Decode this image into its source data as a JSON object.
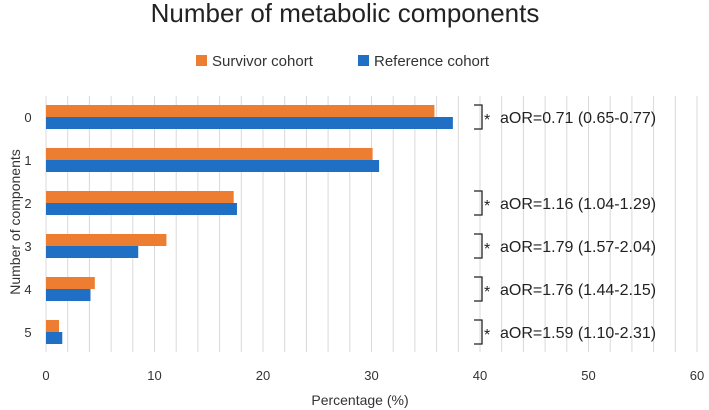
{
  "chart_data": {
    "type": "bar",
    "orientation": "horizontal",
    "title": "Number of metabolic components",
    "xlabel": "Percentage (%)",
    "ylabel": "Number of components",
    "categories": [
      "0",
      "1",
      "2",
      "3",
      "4",
      "5"
    ],
    "series": [
      {
        "name": "Survivor cohort",
        "color": "#ED7D31",
        "values": [
          35.8,
          30.1,
          17.3,
          11.1,
          4.5,
          1.2
        ]
      },
      {
        "name": "Reference cohort",
        "color": "#1F6FC5",
        "values": [
          37.5,
          30.7,
          17.6,
          8.5,
          4.1,
          1.5
        ]
      }
    ],
    "xlim": [
      0,
      60
    ],
    "xticks": [
      "0",
      "10",
      "20",
      "30",
      "40",
      "50",
      "60"
    ],
    "grid": true,
    "legend_position": "top",
    "annotations": [
      {
        "category": "0",
        "marker": "*",
        "text": "aOR=0.71 (0.65-0.77)"
      },
      {
        "category": "2",
        "marker": "*",
        "text": "aOR=1.16 (1.04-1.29)"
      },
      {
        "category": "3",
        "marker": "*",
        "text": "aOR=1.79 (1.57-2.04)"
      },
      {
        "category": "4",
        "marker": "*",
        "text": "aOR=1.76 (1.44-2.15)"
      },
      {
        "category": "5",
        "marker": "*",
        "text": "aOR=1.59 (1.10-2.31)"
      }
    ]
  }
}
